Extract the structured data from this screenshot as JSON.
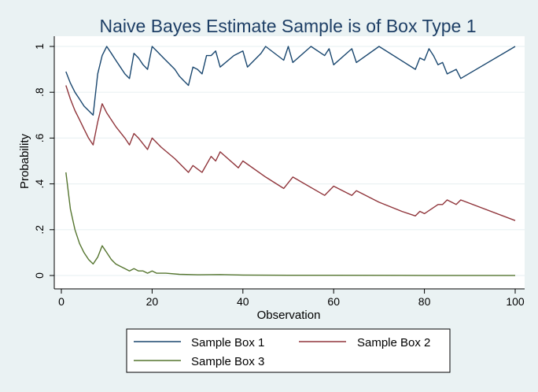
{
  "chart_data": {
    "type": "line",
    "title": "Naive Bayes Estimate Sample is of Box Type 1",
    "xlabel": "Observation",
    "ylabel": "Probability",
    "xlim": [
      0,
      100
    ],
    "ylim": [
      0,
      1
    ],
    "x_ticks": [
      "0",
      "20",
      "40",
      "60",
      "80",
      "100"
    ],
    "y_ticks": [
      "0",
      ".2",
      ".4",
      ".6",
      ".8",
      "1"
    ],
    "grid": true,
    "legend_position": "bottom",
    "series": [
      {
        "name": "Sample Box 1",
        "color": "#1a476f",
        "points": [
          [
            1,
            0.89
          ],
          [
            2,
            0.84
          ],
          [
            3,
            0.8
          ],
          [
            4,
            0.77
          ],
          [
            5,
            0.74
          ],
          [
            6,
            0.72
          ],
          [
            7,
            0.7
          ],
          [
            8,
            0.88
          ],
          [
            9,
            0.96
          ],
          [
            10,
            1.0
          ],
          [
            11,
            0.97
          ],
          [
            12,
            0.94
          ],
          [
            13,
            0.91
          ],
          [
            14,
            0.88
          ],
          [
            15,
            0.86
          ],
          [
            16,
            0.97
          ],
          [
            17,
            0.95
          ],
          [
            18,
            0.92
          ],
          [
            19,
            0.9
          ],
          [
            20,
            1.0
          ],
          [
            21,
            0.98
          ],
          [
            22,
            0.96
          ],
          [
            23,
            0.94
          ],
          [
            24,
            0.92
          ],
          [
            25,
            0.9
          ],
          [
            26,
            0.87
          ],
          [
            27,
            0.85
          ],
          [
            28,
            0.83
          ],
          [
            29,
            0.91
          ],
          [
            30,
            0.9
          ],
          [
            31,
            0.88
          ],
          [
            32,
            0.96
          ],
          [
            33,
            0.96
          ],
          [
            34,
            0.98
          ],
          [
            35,
            0.91
          ],
          [
            38,
            0.96
          ],
          [
            40,
            0.98
          ],
          [
            41,
            0.91
          ],
          [
            44,
            0.97
          ],
          [
            45,
            1.0
          ],
          [
            49,
            0.94
          ],
          [
            50,
            1.0
          ],
          [
            51,
            0.93
          ],
          [
            55,
            1.0
          ],
          [
            58,
            0.96
          ],
          [
            59,
            0.99
          ],
          [
            60,
            0.92
          ],
          [
            64,
            0.99
          ],
          [
            65,
            0.93
          ],
          [
            70,
            1.0
          ],
          [
            78,
            0.9
          ],
          [
            79,
            0.95
          ],
          [
            80,
            0.94
          ],
          [
            81,
            0.99
          ],
          [
            82,
            0.96
          ],
          [
            83,
            0.92
          ],
          [
            84,
            0.93
          ],
          [
            85,
            0.88
          ],
          [
            87,
            0.9
          ],
          [
            88,
            0.86
          ],
          [
            100,
            1.0
          ]
        ]
      },
      {
        "name": "Sample Box 2",
        "color": "#90353b",
        "points": [
          [
            1,
            0.83
          ],
          [
            2,
            0.77
          ],
          [
            3,
            0.72
          ],
          [
            4,
            0.68
          ],
          [
            5,
            0.64
          ],
          [
            6,
            0.6
          ],
          [
            7,
            0.57
          ],
          [
            8,
            0.67
          ],
          [
            9,
            0.75
          ],
          [
            10,
            0.71
          ],
          [
            12,
            0.65
          ],
          [
            14,
            0.6
          ],
          [
            15,
            0.57
          ],
          [
            16,
            0.62
          ],
          [
            17,
            0.6
          ],
          [
            19,
            0.55
          ],
          [
            20,
            0.6
          ],
          [
            22,
            0.56
          ],
          [
            25,
            0.51
          ],
          [
            28,
            0.45
          ],
          [
            29,
            0.48
          ],
          [
            31,
            0.45
          ],
          [
            33,
            0.52
          ],
          [
            34,
            0.5
          ],
          [
            35,
            0.54
          ],
          [
            39,
            0.47
          ],
          [
            40,
            0.5
          ],
          [
            45,
            0.43
          ],
          [
            49,
            0.38
          ],
          [
            51,
            0.43
          ],
          [
            58,
            0.35
          ],
          [
            60,
            0.39
          ],
          [
            64,
            0.35
          ],
          [
            65,
            0.37
          ],
          [
            70,
            0.32
          ],
          [
            75,
            0.28
          ],
          [
            78,
            0.26
          ],
          [
            79,
            0.28
          ],
          [
            80,
            0.27
          ],
          [
            83,
            0.31
          ],
          [
            84,
            0.31
          ],
          [
            85,
            0.33
          ],
          [
            87,
            0.31
          ],
          [
            88,
            0.33
          ],
          [
            100,
            0.24
          ]
        ]
      },
      {
        "name": "Sample Box 3",
        "color": "#55752f",
        "points": [
          [
            1,
            0.45
          ],
          [
            2,
            0.29
          ],
          [
            3,
            0.2
          ],
          [
            4,
            0.14
          ],
          [
            5,
            0.1
          ],
          [
            6,
            0.07
          ],
          [
            7,
            0.05
          ],
          [
            8,
            0.08
          ],
          [
            9,
            0.13
          ],
          [
            10,
            0.1
          ],
          [
            11,
            0.07
          ],
          [
            12,
            0.05
          ],
          [
            13,
            0.04
          ],
          [
            14,
            0.03
          ],
          [
            15,
            0.02
          ],
          [
            16,
            0.03
          ],
          [
            17,
            0.02
          ],
          [
            18,
            0.02
          ],
          [
            19,
            0.01
          ],
          [
            20,
            0.02
          ],
          [
            21,
            0.01
          ],
          [
            23,
            0.01
          ],
          [
            26,
            0.005
          ],
          [
            30,
            0.003
          ],
          [
            35,
            0.004
          ],
          [
            40,
            0.002
          ],
          [
            50,
            0.001
          ],
          [
            60,
            0.001
          ],
          [
            80,
            0.0005
          ],
          [
            100,
            0.0003
          ]
        ]
      }
    ]
  }
}
